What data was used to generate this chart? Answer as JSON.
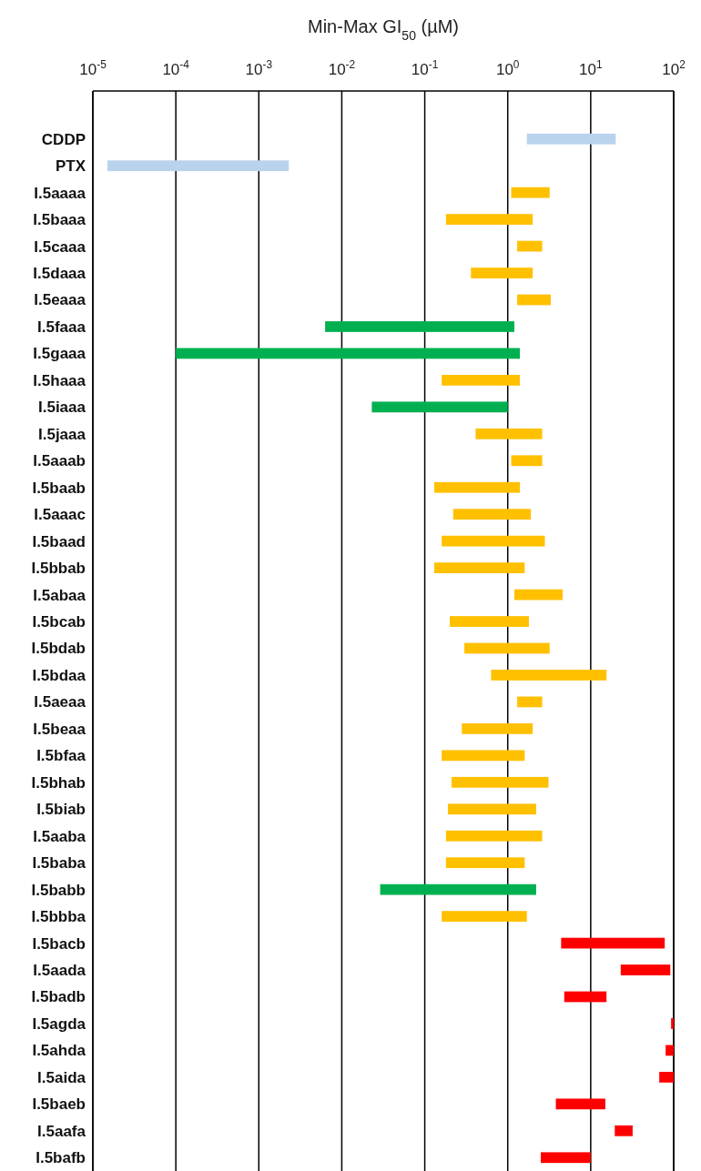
{
  "chart_data": {
    "type": "bar",
    "orientation": "horizontal",
    "xlabel": "Min-Max GI$_{50}$ (µM)",
    "log": "x",
    "grid": "x",
    "categories": [
      "CDDP",
      "PTX",
      "I.5aaaa",
      "I.5baaa",
      "I.5caaa",
      "I.5daaa",
      "I.5eaaa",
      "I.5faaa",
      "I.5gaaa",
      "I.5haaa",
      "I.5iaaa",
      "I.5jaaa",
      "I.5aaab",
      "I.5baab",
      "I.5aaac",
      "I.5baad",
      "I.5bbab",
      "I.5abaa",
      "I.5bcab",
      "I.5bdab",
      "I.5bdaa",
      "I.5aeaa",
      "I.5beaa",
      "I.5bfaa",
      "I.5bhab",
      "I.5biab",
      "I.5aaba",
      "I.5baba",
      "I.5babb",
      "I.5bbba",
      "I.5bacb",
      "I.5aada",
      "I.5badb",
      "I.5agda",
      "I.5ahda",
      "I.5aida",
      "I.5baeb",
      "I.5aafa",
      "I.5bafb"
    ],
    "base": [
      1.7,
      1.5e-05,
      1.1,
      0.18,
      1.3,
      0.36,
      1.3,
      0.0063,
      0.0001,
      0.16,
      0.023,
      0.41,
      1.1,
      0.13,
      0.22,
      0.16,
      0.13,
      1.2,
      0.2,
      0.3,
      0.63,
      1.3,
      0.28,
      0.16,
      0.21,
      0.19,
      0.18,
      0.18,
      0.029,
      0.16,
      4.4,
      23,
      4.8,
      93,
      80,
      67,
      3.8,
      19.5,
      2.5
    ],
    "values": [
      18.3,
      0.002285,
      2.1,
      1.82,
      1.3,
      1.64,
      2.0,
      1.1937,
      1.3999,
      1.24,
      0.977,
      2.19,
      1.5,
      1.27,
      1.68,
      2.64,
      1.47,
      3.4,
      1.6,
      2.9,
      14.87,
      1.3,
      1.72,
      1.44,
      2.89,
      2.01,
      2.42,
      1.42,
      2.171,
      1.54,
      73.6,
      68,
      10.7,
      7,
      20,
      33,
      11.2,
      12.5,
      7.5
    ],
    "colors": [
      "#b9d3ec",
      "#b9d3ec",
      "#ffc000",
      "#ffc000",
      "#ffc000",
      "#ffc000",
      "#ffc000",
      "#00b050",
      "#00b050",
      "#ffc000",
      "#00b050",
      "#ffc000",
      "#ffc000",
      "#ffc000",
      "#ffc000",
      "#ffc000",
      "#ffc000",
      "#ffc000",
      "#ffc000",
      "#ffc000",
      "#ffc000",
      "#ffc000",
      "#ffc000",
      "#ffc000",
      "#ffc000",
      "#ffc000",
      "#ffc000",
      "#ffc000",
      "#00b050",
      "#ffc000",
      "#ff0000",
      "#ff0000",
      "#ff0000",
      "#ff0000",
      "#ff0000",
      "#ff0000",
      "#ff0000",
      "#ff0000",
      "#ff0000"
    ],
    "xlim": [
      1e-05,
      100
    ],
    "xticks": [
      {
        "value": 1e-05,
        "label": "10$^{-5}$"
      },
      {
        "value": 0.0001,
        "label": "10$^{-4}$"
      },
      {
        "value": 0.001,
        "label": "10$^{-3}$"
      },
      {
        "value": 0.01,
        "label": "10$^{-2}$"
      },
      {
        "value": 0.1,
        "label": "10$^{-1}$"
      },
      {
        "value": 1,
        "label": "10$^{0}$"
      },
      {
        "value": 10,
        "label": "10$^{1}$"
      },
      {
        "value": 100,
        "label": "10$^{2}$"
      }
    ]
  }
}
